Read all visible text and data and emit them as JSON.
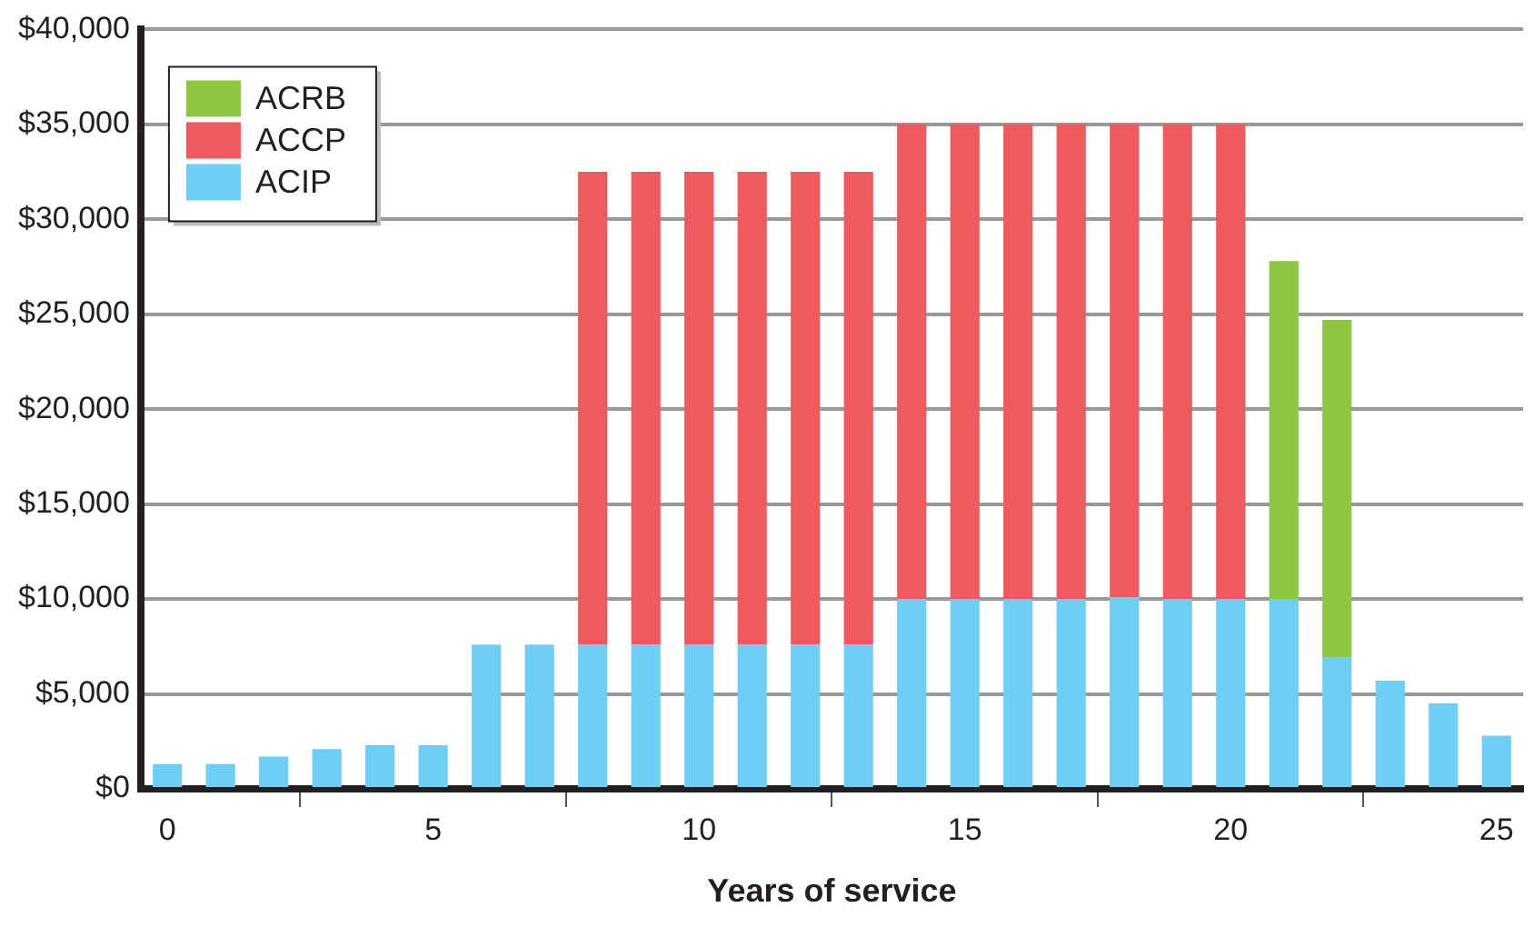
{
  "chart_data": {
    "type": "bar",
    "xlabel": "Years of service",
    "stacked": true,
    "x": [
      0,
      1,
      2,
      3,
      4,
      5,
      6,
      7,
      8,
      9,
      10,
      11,
      12,
      13,
      14,
      15,
      16,
      17,
      18,
      19,
      20,
      21,
      22,
      23,
      24,
      25
    ],
    "series": [
      {
        "name": "ACIP",
        "color": "#6dcff6",
        "values": [
          1300,
          1300,
          1700,
          2100,
          2300,
          2300,
          7600,
          7600,
          7600,
          7600,
          7600,
          7600,
          7600,
          7600,
          10000,
          10000,
          10000,
          10000,
          10100,
          10000,
          10000,
          10000,
          6900,
          5700,
          4500,
          2800
        ]
      },
      {
        "name": "ACCP",
        "color": "#f05a5e",
        "values": [
          null,
          null,
          null,
          null,
          null,
          null,
          null,
          null,
          24900,
          24900,
          24900,
          24900,
          24900,
          24900,
          25000,
          25000,
          25000,
          25000,
          24900,
          25000,
          25000,
          null,
          null,
          null,
          null,
          null
        ]
      },
      {
        "name": "ACRB",
        "color": "#8dc63f",
        "values": [
          null,
          null,
          null,
          null,
          null,
          null,
          null,
          null,
          null,
          null,
          null,
          null,
          null,
          null,
          null,
          null,
          null,
          null,
          null,
          null,
          null,
          17800,
          17800,
          null,
          null,
          null
        ]
      }
    ],
    "xlim": [
      -0.5,
      25.5
    ],
    "xticks": [
      0,
      5,
      10,
      15,
      20,
      25
    ],
    "ylim": [
      0,
      40000
    ],
    "yticks": [
      {
        "value": 0,
        "label": "$0"
      },
      {
        "value": 5000,
        "label": "$5,000"
      },
      {
        "value": 10000,
        "label": "$10,000"
      },
      {
        "value": 15000,
        "label": "$15,000"
      },
      {
        "value": 20000,
        "label": "$20,000"
      },
      {
        "value": 25000,
        "label": "$25,000"
      },
      {
        "value": 30000,
        "label": "$30,000"
      },
      {
        "value": 35000,
        "label": "$35,000"
      },
      {
        "value": 40000,
        "label": "$40,000"
      }
    ],
    "grid": "y",
    "legend": "top left"
  }
}
